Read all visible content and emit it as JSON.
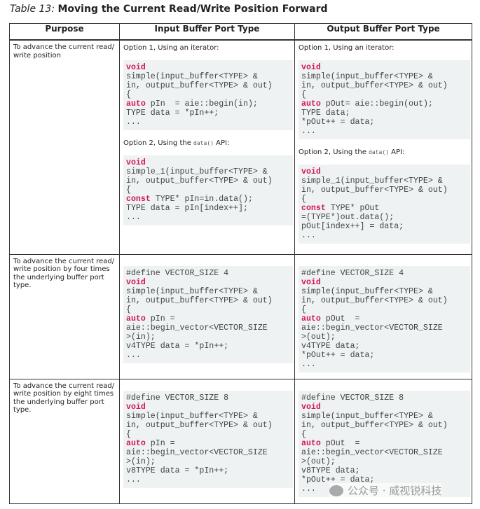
{
  "title": {
    "prefix": "Table 13:",
    "text": "Moving the Current Read/Write Position Forward"
  },
  "headers": [
    "Purpose",
    "Input Buffer Port Type",
    "Output Buffer Port Type"
  ],
  "rows": [
    {
      "purpose": "To advance the current read/ write position",
      "input": [
        {
          "label": "Option 1, Using an iterator:",
          "code": [
            "void",
            "simple(input_buffer<TYPE> &",
            "in, output_buffer<TYPE> & out)",
            "{",
            "auto pIn  = aie::begin(in);",
            "TYPE data = *pIn++;",
            "..."
          ]
        },
        {
          "label_pre": "Option 2, Using the ",
          "label_code": "data()",
          "label_post": " API:",
          "code": [
            "void",
            "simple_1(input_buffer<TYPE> &",
            "in, output_buffer<TYPE> & out)",
            "{",
            "const TYPE* pIn=in.data();",
            "TYPE data = pIn[index++];",
            "..."
          ]
        }
      ],
      "output": [
        {
          "label": "Option 1, Using an iterator:",
          "code": [
            "void",
            "simple(input_buffer<TYPE> &",
            "in, output_buffer<TYPE> & out)",
            "{",
            "auto pOut= aie::begin(out);",
            "TYPE data;",
            "*pOut++ = data;",
            "..."
          ]
        },
        {
          "label_pre": "Option 2, Using the ",
          "label_code": "data()",
          "label_post": " API:",
          "code": [
            "void",
            "simple_1(input_buffer<TYPE> &",
            "in, output_buffer<TYPE> & out)",
            "{",
            "const TYPE* pOut",
            "=(TYPE*)out.data();",
            "pOut[index++] = data;",
            "..."
          ]
        }
      ]
    },
    {
      "purpose": "To advance the current read/ write position by four times the underlying buffer port type.",
      "input": [
        {
          "code": [
            "#define VECTOR_SIZE 4",
            "void",
            "simple(input_buffer<TYPE> &",
            "in, output_buffer<TYPE> & out)",
            "{",
            "auto pIn =",
            "aie::begin_vector<VECTOR_SIZE",
            ">(in);",
            "v4TYPE data = *pIn++;",
            "..."
          ]
        }
      ],
      "output": [
        {
          "code": [
            "#define VECTOR_SIZE 4",
            "void",
            "simple(input_buffer<TYPE> &",
            "in, output_buffer<TYPE> & out)",
            "{",
            "auto pOut  =",
            "aie::begin_vector<VECTOR_SIZE",
            ">(out);",
            "v4TYPE data;",
            "*pOut++ = data;",
            "..."
          ]
        }
      ]
    },
    {
      "purpose": "To advance the current read/ write position by eight times the underlying buffer port type.",
      "input": [
        {
          "code": [
            "#define VECTOR_SIZE 8",
            "void",
            "simple(input_buffer<TYPE> &",
            "in, output_buffer<TYPE> & out)",
            "{",
            "auto pIn =",
            "aie::begin_vector<VECTOR_SIZE",
            ">(in);",
            "v8TYPE data = *pIn++;",
            "..."
          ]
        }
      ],
      "output": [
        {
          "code": [
            "#define VECTOR_SIZE 8",
            "void",
            "simple(input_buffer<TYPE> &",
            "in, output_buffer<TYPE> & out)",
            "{",
            "auto pOut  =",
            "aie::begin_vector<VECTOR_SIZE",
            ">(out);",
            "v8TYPE data;",
            "*pOut++ = data;",
            "..."
          ]
        }
      ]
    }
  ],
  "keywords": [
    "void",
    "auto",
    "const"
  ],
  "keyword_color": "#d4145a",
  "watermark": "公众号 · 威视锐科技"
}
